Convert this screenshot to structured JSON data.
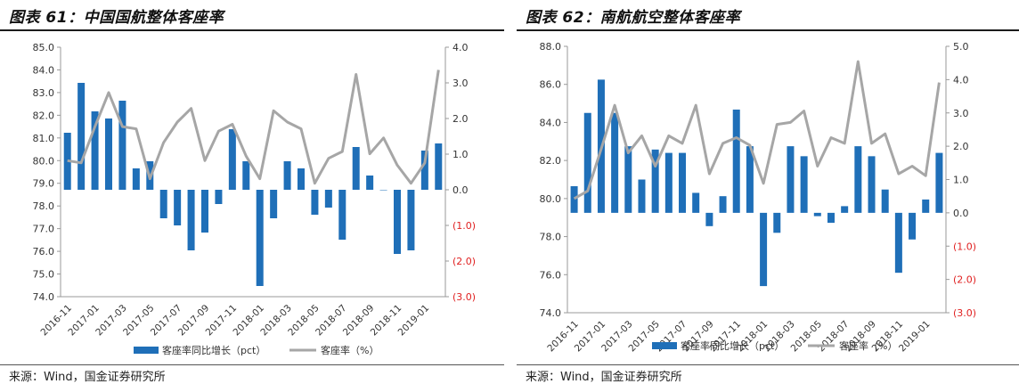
{
  "colors": {
    "bar": "#1f6fb8",
    "line": "#a6a6a6",
    "negative_label": "#e02020",
    "axis": "#999999"
  },
  "charts": [
    {
      "title": "图表 61：中国国航整体客座率",
      "source": "来源：Wind，国金证券研究所",
      "left_ticks": [
        "85.0",
        "84.0",
        "83.0",
        "82.0",
        "81.0",
        "80.0",
        "79.0",
        "78.0",
        "77.0",
        "76.0",
        "75.0",
        "74.0"
      ],
      "right_ticks": [
        "4.0",
        "3.0",
        "2.0",
        "1.0",
        "0.0",
        "(1.0)",
        "(2.0)",
        "(3.0)"
      ],
      "x_labels": [
        "2016-11",
        "2017-01",
        "2017-03",
        "2017-05",
        "2017-07",
        "2017-09",
        "2017-11",
        "2018-01",
        "2018-03",
        "2018-05",
        "2018-07",
        "2018-09",
        "2018-11",
        "2019-01"
      ],
      "legend": {
        "bar": "客座率同比增长（pct）",
        "line": "客座率（%）"
      }
    },
    {
      "title": "图表 62：南航航空整体客座率",
      "source": "来源：Wind，国金证券研究所",
      "left_ticks": [
        "88.0",
        "86.0",
        "84.0",
        "82.0",
        "80.0",
        "78.0",
        "76.0",
        "74.0"
      ],
      "right_ticks": [
        "5.0",
        "4.0",
        "3.0",
        "2.0",
        "1.0",
        "0.0",
        "(1.0)",
        "(2.0)",
        "(3.0)"
      ],
      "x_labels": [
        "2016-11",
        "2017-01",
        "2017-03",
        "2017-05",
        "2017-07",
        "2017-09",
        "2017-11",
        "2018-01",
        "2018-03",
        "2018-05",
        "2018-07",
        "2018-09",
        "2018-11",
        "2019-01"
      ],
      "legend": {
        "bar": "客座率同比增长（pct）",
        "line": "客座率（%）"
      }
    }
  ],
  "chart_data": [
    {
      "type": "bar",
      "title": "图表 61：中国国航整体客座率",
      "categories": [
        "2016-11",
        "2016-12",
        "2017-01",
        "2017-02",
        "2017-03",
        "2017-04",
        "2017-05",
        "2017-06",
        "2017-07",
        "2017-08",
        "2017-09",
        "2017-10",
        "2017-11",
        "2017-12",
        "2018-01",
        "2018-02",
        "2018-03",
        "2018-04",
        "2018-05",
        "2018-06",
        "2018-07",
        "2018-08",
        "2018-09",
        "2018-10",
        "2018-11",
        "2018-12",
        "2019-01",
        "2019-02"
      ],
      "series": [
        {
          "name": "客座率同比增长（pct）",
          "axis": "right",
          "type": "bar",
          "values": [
            1.6,
            3.0,
            2.2,
            2.0,
            2.5,
            0.6,
            0.8,
            -0.8,
            -1.0,
            -1.7,
            -1.2,
            -0.4,
            1.7,
            0.8,
            -2.7,
            -0.8,
            0.8,
            0.6,
            -0.7,
            -0.5,
            -1.4,
            1.2,
            0.4,
            0.0,
            -1.8,
            -1.7,
            1.1,
            1.3
          ]
        },
        {
          "name": "客座率（%）",
          "axis": "left",
          "type": "line",
          "values": [
            80.0,
            79.9,
            81.5,
            83.0,
            81.5,
            81.4,
            79.2,
            80.8,
            81.7,
            82.3,
            80.0,
            81.3,
            81.6,
            80.2,
            79.2,
            82.2,
            81.7,
            81.4,
            79.0,
            80.1,
            80.4,
            83.8,
            80.3,
            81.0,
            79.8,
            79.0,
            79.9,
            84.0
          ]
        }
      ],
      "ylim_left": [
        74,
        85
      ],
      "ylim_right": [
        -3,
        4
      ],
      "legend_position": "bottom"
    },
    {
      "type": "bar",
      "title": "图表 62：南航航空整体客座率",
      "categories": [
        "2016-11",
        "2016-12",
        "2017-01",
        "2017-02",
        "2017-03",
        "2017-04",
        "2017-05",
        "2017-06",
        "2017-07",
        "2017-08",
        "2017-09",
        "2017-10",
        "2017-11",
        "2017-12",
        "2018-01",
        "2018-02",
        "2018-03",
        "2018-04",
        "2018-05",
        "2018-06",
        "2018-07",
        "2018-08",
        "2018-09",
        "2018-10",
        "2018-11",
        "2018-12",
        "2019-01",
        "2019-02"
      ],
      "series": [
        {
          "name": "客座率同比增长（pct）",
          "axis": "right",
          "type": "bar",
          "values": [
            0.8,
            3.0,
            4.0,
            3.0,
            2.0,
            1.0,
            1.9,
            1.8,
            1.8,
            0.6,
            -0.4,
            0.5,
            3.1,
            2.0,
            -2.2,
            -0.6,
            2.0,
            1.7,
            -0.1,
            -0.3,
            0.2,
            2.0,
            1.7,
            0.7,
            -1.8,
            -0.8,
            0.4,
            1.8
          ]
        },
        {
          "name": "客座率（%）",
          "axis": "left",
          "type": "line",
          "values": [
            80.0,
            80.4,
            82.6,
            84.9,
            82.4,
            83.3,
            81.7,
            83.3,
            82.9,
            84.9,
            81.3,
            82.9,
            83.2,
            82.8,
            80.8,
            83.9,
            84.0,
            84.6,
            81.7,
            83.2,
            82.9,
            87.2,
            82.9,
            83.4,
            81.3,
            81.7,
            81.2,
            86.1
          ]
        }
      ],
      "ylim_left": [
        74,
        88
      ],
      "ylim_right": [
        -3,
        5
      ],
      "legend_position": "bottom"
    }
  ]
}
